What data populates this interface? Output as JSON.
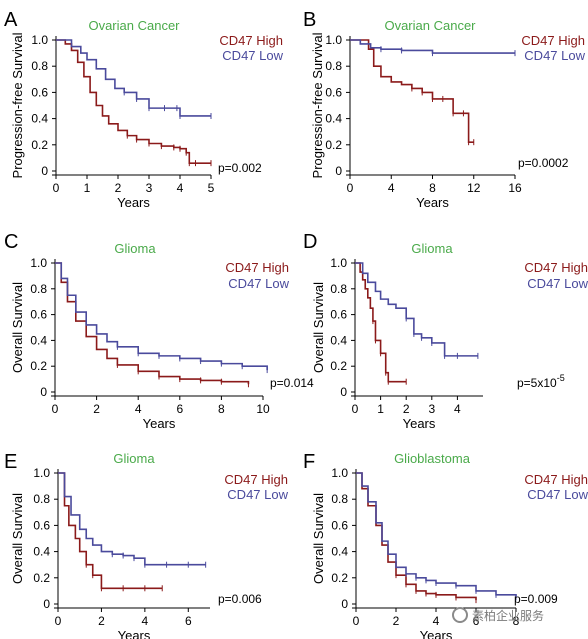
{
  "colors": {
    "high": "#8b1a1a",
    "low": "#4a4a9c",
    "title": "#4aaa4a",
    "axis": "#000000"
  },
  "chart_data": [
    {
      "panel": "A",
      "type": "line",
      "title": "Ovarian Cancer",
      "xlabel": "Years",
      "ylabel": "Progression-free Survival",
      "xlim": [
        0,
        5
      ],
      "ylim": [
        0,
        1.0
      ],
      "xticks": [
        "0",
        "1",
        "2",
        "3",
        "4",
        "5"
      ],
      "yticks": [
        "0",
        "0.2",
        "0.4",
        "0.6",
        "0.8",
        "1.0"
      ],
      "pvalue": "p=0.002",
      "series": [
        {
          "name": "CD47 High",
          "x": [
            0,
            0.3,
            0.5,
            0.7,
            0.9,
            1.1,
            1.3,
            1.5,
            1.7,
            2,
            2.3,
            2.6,
            3,
            3.4,
            3.8,
            4,
            4.2,
            4.3,
            4.5,
            5
          ],
          "y": [
            1,
            0.97,
            0.92,
            0.83,
            0.72,
            0.6,
            0.5,
            0.42,
            0.36,
            0.31,
            0.27,
            0.24,
            0.21,
            0.19,
            0.18,
            0.17,
            0.14,
            0.06,
            0.06,
            0.06
          ]
        },
        {
          "name": "CD47 Low",
          "x": [
            0,
            0.5,
            0.8,
            1,
            1.3,
            1.6,
            1.9,
            2.2,
            2.6,
            3,
            3.5,
            3.9,
            4,
            5
          ],
          "y": [
            1,
            0.95,
            0.9,
            0.85,
            0.78,
            0.7,
            0.63,
            0.6,
            0.55,
            0.48,
            0.48,
            0.48,
            0.42,
            0.42
          ]
        }
      ]
    },
    {
      "panel": "B",
      "type": "line",
      "title": "Ovarian Cancer",
      "xlabel": "Years",
      "ylabel": "Progression-free Survival",
      "xlim": [
        0,
        16
      ],
      "ylim": [
        0,
        1.0
      ],
      "xticks": [
        "0",
        "4",
        "8",
        "12",
        "16"
      ],
      "yticks": [
        "0",
        "0.2",
        "0.4",
        "0.6",
        "0.8",
        "1.0"
      ],
      "pvalue": "p=0.0002",
      "series": [
        {
          "name": "CD47 High",
          "x": [
            0,
            1,
            1.8,
            2.3,
            3,
            4,
            5,
            6,
            7,
            8,
            9,
            10,
            11,
            11.5,
            12
          ],
          "y": [
            1,
            1,
            0.93,
            0.8,
            0.72,
            0.68,
            0.66,
            0.63,
            0.6,
            0.55,
            0.55,
            0.44,
            0.44,
            0.22,
            0.22
          ]
        },
        {
          "name": "CD47 Low",
          "x": [
            0,
            1,
            2,
            3,
            5,
            8,
            16
          ],
          "y": [
            1,
            0.97,
            0.94,
            0.93,
            0.92,
            0.9,
            0.9
          ]
        }
      ]
    },
    {
      "panel": "C",
      "type": "line",
      "title": "Glioma",
      "xlabel": "Years",
      "ylabel": "Overall Survival",
      "xlim": [
        0,
        10
      ],
      "ylim": [
        0,
        1.0
      ],
      "xticks": [
        "0",
        "2",
        "4",
        "6",
        "8",
        "10"
      ],
      "yticks": [
        "0",
        "0.2",
        "0.4",
        "0.6",
        "0.8",
        "1.0"
      ],
      "pvalue": "p=0.014",
      "series": [
        {
          "name": "CD47 High",
          "x": [
            0,
            0.3,
            0.6,
            1,
            1.5,
            2,
            2.5,
            3,
            4,
            5,
            6,
            7,
            8,
            9.3
          ],
          "y": [
            1,
            0.85,
            0.7,
            0.55,
            0.43,
            0.33,
            0.26,
            0.21,
            0.16,
            0.12,
            0.1,
            0.09,
            0.08,
            0.06
          ]
        },
        {
          "name": "CD47 Low",
          "x": [
            0,
            0.3,
            0.6,
            1,
            1.5,
            2,
            2.5,
            3,
            4,
            5,
            6,
            7,
            8,
            9,
            10.2
          ],
          "y": [
            1,
            0.88,
            0.75,
            0.62,
            0.52,
            0.45,
            0.39,
            0.35,
            0.3,
            0.28,
            0.26,
            0.24,
            0.22,
            0.2,
            0.17
          ]
        }
      ]
    },
    {
      "panel": "D",
      "type": "line",
      "title": "Glioma",
      "xlabel": "Years",
      "ylabel": "Overall Survival",
      "xlim": [
        0,
        5
      ],
      "ylim": [
        0,
        1.0
      ],
      "xticks": [
        "0",
        "1",
        "2",
        "3",
        "4"
      ],
      "yticks": [
        "0",
        "0.2",
        "0.4",
        "0.6",
        "0.8",
        "1.0"
      ],
      "pvalue": "p=5x10-5",
      "series": [
        {
          "name": "CD47 High",
          "x": [
            0,
            0.2,
            0.3,
            0.4,
            0.5,
            0.6,
            0.7,
            0.8,
            1,
            1.2,
            1.3,
            2
          ],
          "y": [
            1,
            0.93,
            0.87,
            0.8,
            0.73,
            0.65,
            0.55,
            0.4,
            0.3,
            0.15,
            0.08,
            0.08
          ]
        },
        {
          "name": "CD47 Low",
          "x": [
            0,
            0.3,
            0.5,
            0.8,
            1,
            1.3,
            1.6,
            2,
            2.3,
            2.6,
            3,
            3.5,
            4,
            4.8
          ],
          "y": [
            1,
            0.92,
            0.85,
            0.78,
            0.72,
            0.68,
            0.65,
            0.57,
            0.45,
            0.42,
            0.38,
            0.28,
            0.28,
            0.28
          ]
        }
      ]
    },
    {
      "panel": "E",
      "type": "line",
      "title": "Glioma",
      "xlabel": "Years",
      "ylabel": "Overall Survival",
      "xlim": [
        0,
        7
      ],
      "ylim": [
        0,
        1.0
      ],
      "xticks": [
        "0",
        "2",
        "4",
        "6"
      ],
      "yticks": [
        "0",
        "0.2",
        "0.4",
        "0.6",
        "0.8",
        "1.0"
      ],
      "pvalue": "p=0.006",
      "series": [
        {
          "name": "CD47 High",
          "x": [
            0,
            0.3,
            0.5,
            0.8,
            1,
            1.3,
            1.6,
            2,
            3,
            4,
            4.8
          ],
          "y": [
            1,
            0.75,
            0.6,
            0.5,
            0.4,
            0.3,
            0.22,
            0.12,
            0.12,
            0.12,
            0.12
          ]
        },
        {
          "name": "CD47 Low",
          "x": [
            0,
            0.3,
            0.6,
            1,
            1.3,
            1.6,
            2,
            2.5,
            3,
            3.5,
            4,
            5,
            6,
            6.8
          ],
          "y": [
            1,
            0.82,
            0.68,
            0.57,
            0.5,
            0.45,
            0.4,
            0.38,
            0.37,
            0.35,
            0.3,
            0.3,
            0.3,
            0.3
          ]
        }
      ]
    },
    {
      "panel": "F",
      "type": "line",
      "title": "Glioblastoma",
      "xlabel": "Years",
      "ylabel": "Overall Survival",
      "xlim": [
        0,
        8
      ],
      "ylim": [
        0,
        1.0
      ],
      "xticks": [
        "0",
        "2",
        "4",
        "6",
        "8"
      ],
      "yticks": [
        "0",
        "0.2",
        "0.4",
        "0.6",
        "0.8",
        "1.0"
      ],
      "pvalue": "p=0.009",
      "series": [
        {
          "name": "CD47 High",
          "x": [
            0,
            0.3,
            0.6,
            1,
            1.3,
            1.6,
            2,
            2.5,
            3,
            3.5,
            4,
            5,
            6
          ],
          "y": [
            1,
            0.88,
            0.75,
            0.6,
            0.45,
            0.32,
            0.22,
            0.15,
            0.1,
            0.08,
            0.07,
            0.05,
            0.03
          ]
        },
        {
          "name": "CD47 Low",
          "x": [
            0,
            0.3,
            0.6,
            1,
            1.3,
            1.6,
            2,
            2.5,
            3,
            3.5,
            4,
            5,
            6,
            7,
            8
          ],
          "y": [
            1,
            0.9,
            0.78,
            0.62,
            0.48,
            0.38,
            0.28,
            0.23,
            0.2,
            0.18,
            0.16,
            0.14,
            0.1,
            0.07,
            0.05
          ]
        }
      ]
    }
  ],
  "watermark": {
    "text": "素柏企业服务"
  }
}
